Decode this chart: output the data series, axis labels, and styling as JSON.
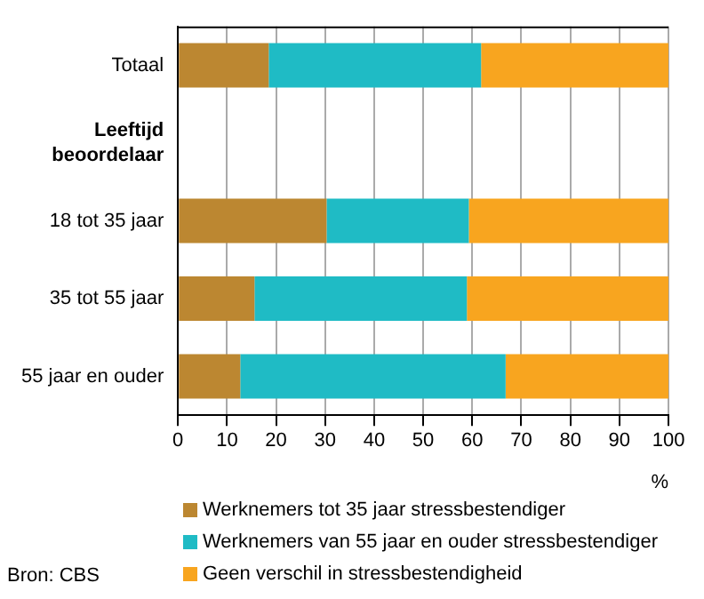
{
  "chart_data": {
    "type": "bar",
    "orientation": "horizontal",
    "stacked": true,
    "categories": [
      "Totaal",
      "Leeftijd beoordelaar",
      "18 tot 35 jaar",
      "35 tot 55 jaar",
      "55 jaar en ouder"
    ],
    "series": [
      {
        "name": "Werknemers tot 35 jaar stressbestendiger",
        "color": "#bc8731",
        "values": [
          18.5,
          null,
          30.3,
          15.6,
          12.7
        ]
      },
      {
        "name": "Werknemers van 55 jaar en ouder stressbestendiger",
        "color": "#1fbbc5",
        "values": [
          43.3,
          null,
          29,
          43.3,
          54.1
        ]
      },
      {
        "name": "Geen verschil in stressbestendigheid",
        "color": "#f8a51f",
        "values": [
          38.2,
          null,
          40.7,
          41.1,
          33.2
        ]
      }
    ],
    "xlabel": "%",
    "xlim": [
      0,
      100
    ],
    "xticks": [
      0,
      10,
      20,
      30,
      40,
      50,
      60,
      70,
      80,
      90,
      100
    ],
    "grid": "x",
    "legend": "bottom",
    "annotations": [
      "Bron: CBS"
    ]
  }
}
